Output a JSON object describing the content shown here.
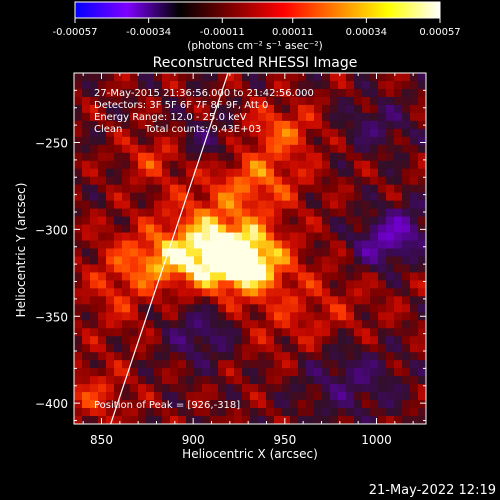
{
  "colorbar": {
    "tick_labels": [
      "-0.00057",
      "-0.00034",
      "-0.00011",
      "0.00011",
      "0.00034",
      "0.00057"
    ],
    "tick_values": [
      -0.00057,
      -0.00034,
      -0.00011,
      0.00011,
      0.00034,
      0.00057
    ],
    "range": [
      -0.00057,
      0.00057
    ],
    "unit_label": "(photons cm⁻² s⁻¹ asec⁻²)",
    "colors": [
      "#0000ff",
      "#7f00ff",
      "#000000",
      "#7f0000",
      "#ff0000",
      "#ff7f00",
      "#ffff00",
      "#ffffff"
    ]
  },
  "annotations": {
    "time_range": "27-May-2015 21:36:56.000 to 21:42:56.000",
    "detectors": "Detectors: 3F 5F 6F 7F 8F 9F, Att 0",
    "energy": "Energy Range: 12.0 - 25.0 keV",
    "clean": "Clean",
    "counts": "Total counts: 9.43E+03",
    "peak": "Position of Peak = [926,-318]"
  },
  "footer": {
    "timestamp": "21-May-2022 12:19"
  },
  "chart_data": {
    "type": "heatmap",
    "title": "Reconstructed RHESSI Image",
    "xlabel": "Heliocentric X (arcsec)",
    "ylabel": "Heliocentric Y (arcsec)",
    "xlim": [
      835,
      1027
    ],
    "ylim": [
      -412,
      -210
    ],
    "x_ticks": [
      850,
      900,
      950,
      1000
    ],
    "x_tick_labels": [
      "850",
      "900",
      "950",
      "1000"
    ],
    "y_ticks": [
      -250,
      -300,
      -350,
      -400
    ],
    "y_tick_labels": [
      "−250",
      "−300",
      "−350",
      "−400"
    ],
    "limb_line": [
      [
        855,
        -412
      ],
      [
        919,
        -210
      ]
    ],
    "peak": [
      926,
      -318
    ],
    "sources": [
      {
        "x": 926,
        "y": -318,
        "sx": 16,
        "sy": 12,
        "amp": 1.0
      },
      {
        "x": 908,
        "y": -305,
        "sx": 20,
        "sy": 18,
        "amp": 0.55
      },
      {
        "x": 885,
        "y": -318,
        "sx": 14,
        "sy": 10,
        "amp": 0.45
      },
      {
        "x": 935,
        "y": -270,
        "sx": 18,
        "sy": 14,
        "amp": 0.45
      },
      {
        "x": 948,
        "y": -242,
        "sx": 15,
        "sy": 10,
        "amp": 0.4
      },
      {
        "x": 880,
        "y": -258,
        "sx": 12,
        "sy": 10,
        "amp": 0.35
      },
      {
        "x": 860,
        "y": -330,
        "sx": 14,
        "sy": 20,
        "amp": 0.3
      },
      {
        "x": 960,
        "y": -350,
        "sx": 30,
        "sy": 20,
        "amp": 0.25
      },
      {
        "x": 1000,
        "y": -310,
        "sx": 10,
        "sy": 10,
        "amp": -0.45
      },
      {
        "x": 1015,
        "y": -300,
        "sx": 10,
        "sy": 10,
        "amp": -0.5
      },
      {
        "x": 905,
        "y": -360,
        "sx": 14,
        "sy": 12,
        "amp": -0.4
      },
      {
        "x": 908,
        "y": -250,
        "sx": 16,
        "sy": 10,
        "amp": -0.3
      },
      {
        "x": 985,
        "y": -385,
        "sx": 20,
        "sy": 16,
        "amp": -0.35
      },
      {
        "x": 1000,
        "y": -240,
        "sx": 14,
        "sy": 10,
        "amp": -0.3
      },
      {
        "x": 845,
        "y": -395,
        "sx": 14,
        "sy": 12,
        "amp": 0.3
      }
    ]
  }
}
